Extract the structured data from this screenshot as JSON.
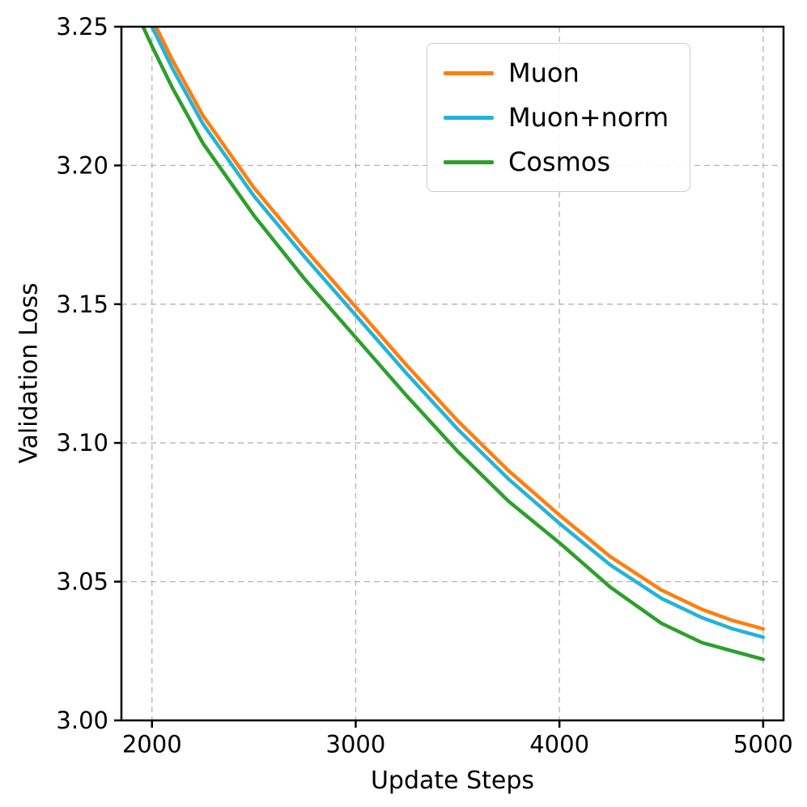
{
  "figure": {
    "background": "#ffffff"
  },
  "chart_data": {
    "type": "line",
    "title": "",
    "xlabel": "Update Steps",
    "ylabel": "Validation Loss",
    "xlim": [
      1850,
      5100
    ],
    "ylim": [
      3.0,
      3.25
    ],
    "xticks": [
      2000,
      3000,
      4000,
      5000
    ],
    "yticks": [
      3.0,
      3.05,
      3.1,
      3.15,
      3.2,
      3.25
    ],
    "grid": true,
    "grid_style": "dashed",
    "legend_position": "upper right",
    "x": [
      1900,
      2000,
      2100,
      2250,
      2500,
      2750,
      3000,
      3250,
      3500,
      3750,
      4000,
      4250,
      4500,
      4700,
      4850,
      5000
    ],
    "series": [
      {
        "name": "Muon",
        "color": "#ff7f0e",
        "values": [
          3.27,
          3.253,
          3.238,
          3.218,
          3.192,
          3.17,
          3.149,
          3.128,
          3.108,
          3.09,
          3.074,
          3.059,
          3.047,
          3.04,
          3.036,
          3.033
        ]
      },
      {
        "name": "Muon+norm",
        "color": "#24b3d9",
        "values": [
          3.266,
          3.25,
          3.235,
          3.215,
          3.189,
          3.167,
          3.146,
          3.125,
          3.105,
          3.087,
          3.071,
          3.056,
          3.044,
          3.037,
          3.033,
          3.03
        ]
      },
      {
        "name": "Cosmos",
        "color": "#2ca02c",
        "values": [
          3.259,
          3.243,
          3.228,
          3.208,
          3.182,
          3.159,
          3.138,
          3.117,
          3.097,
          3.079,
          3.064,
          3.048,
          3.035,
          3.028,
          3.025,
          3.022
        ]
      }
    ]
  }
}
